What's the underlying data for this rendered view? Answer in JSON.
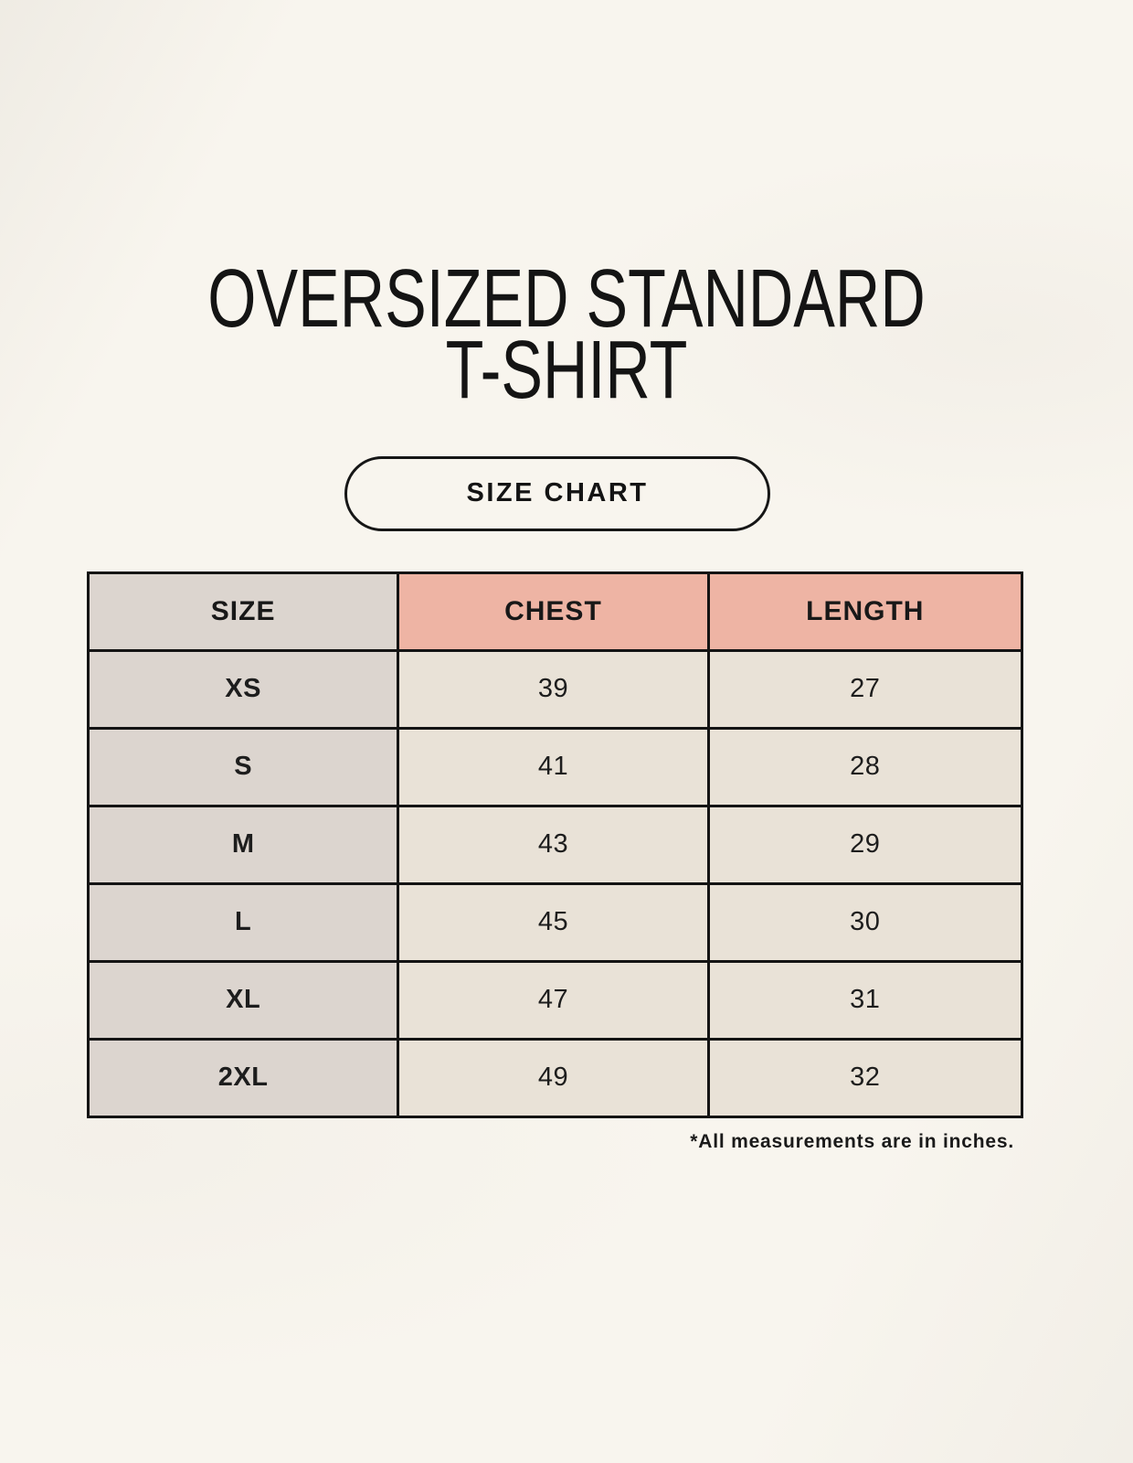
{
  "page": {
    "title_line1": "OVERSIZED STANDARD",
    "title_line2": "T-SHIRT",
    "badge_label": "SIZE CHART",
    "footnote": "*All measurements are in inches."
  },
  "colors": {
    "background": "#f8f5ee",
    "size_column_bg": "#dcd5cf",
    "measure_header_bg": "#eeb4a4",
    "value_cell_bg": "#e9e2d7",
    "border": "#141414",
    "text": "#1b1b1b"
  },
  "chart_data": {
    "type": "table",
    "title": "Oversized Standard T-Shirt Size Chart",
    "columns": [
      "SIZE",
      "CHEST",
      "LENGTH"
    ],
    "rows": [
      [
        "XS",
        "39",
        "27"
      ],
      [
        "S",
        "41",
        "28"
      ],
      [
        "M",
        "43",
        "29"
      ],
      [
        "L",
        "45",
        "30"
      ],
      [
        "XL",
        "47",
        "31"
      ],
      [
        "2XL",
        "49",
        "32"
      ]
    ],
    "units": "inches"
  }
}
